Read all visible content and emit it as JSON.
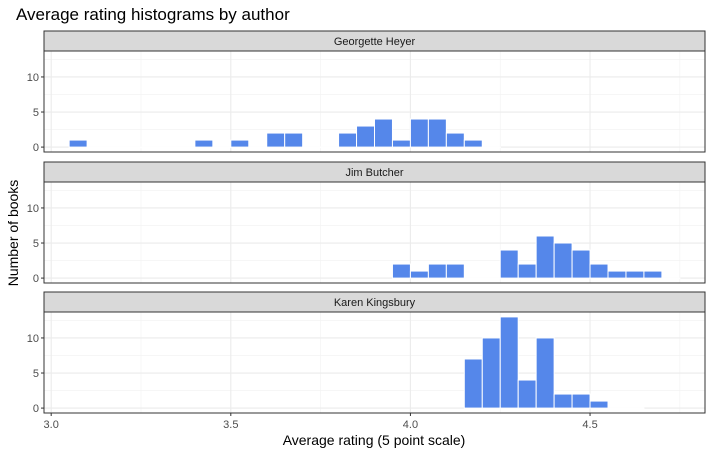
{
  "chart_data": {
    "type": "bar",
    "title": "Average rating histograms by author",
    "xlabel": "Average rating (5 point scale)",
    "ylabel": "Number of books",
    "xlim": [
      2.98,
      4.82
    ],
    "ylim": [
      -0.7,
      13.7
    ],
    "x_ticks": [
      3.0,
      3.5,
      4.0,
      4.5
    ],
    "x_tick_labels": [
      "3.0",
      "3.5",
      "4.0",
      "4.5"
    ],
    "y_ticks": [
      0,
      5,
      10
    ],
    "y_tick_labels": [
      "0",
      "5",
      "10"
    ],
    "bin_width": 0.05,
    "grid": true,
    "bar_color": "#5587ea",
    "bar_edge_color": "#ffffff",
    "strip_fill": "#d9d9d9",
    "facets": [
      {
        "name": "Georgette Heyer",
        "bin_starts": [
          3.05,
          3.1,
          3.15,
          3.2,
          3.25,
          3.3,
          3.35,
          3.4,
          3.45,
          3.5,
          3.55,
          3.6,
          3.65,
          3.7,
          3.75,
          3.8,
          3.85,
          3.9,
          3.95,
          4.0,
          4.05,
          4.1,
          4.15,
          4.2
        ],
        "counts": [
          1,
          0,
          0,
          0,
          0,
          0,
          0,
          1,
          0,
          1,
          0,
          2,
          2,
          0,
          0,
          2,
          3,
          4,
          1,
          4,
          4,
          2,
          1,
          0
        ]
      },
      {
        "name": "Jim Butcher",
        "bin_starts": [
          3.95,
          4.0,
          4.05,
          4.1,
          4.15,
          4.2,
          4.25,
          4.3,
          4.35,
          4.4,
          4.45,
          4.5,
          4.55,
          4.6,
          4.65,
          4.7
        ],
        "counts": [
          2,
          1,
          2,
          2,
          0,
          0,
          4,
          2,
          6,
          5,
          4,
          2,
          1,
          1,
          1,
          0
        ]
      },
      {
        "name": "Karen Kingsbury",
        "bin_starts": [
          4.15,
          4.2,
          4.25,
          4.3,
          4.35,
          4.4,
          4.45,
          4.5,
          4.55,
          4.6
        ],
        "counts": [
          7,
          10,
          13,
          4,
          10,
          2,
          2,
          1,
          0,
          0
        ]
      }
    ]
  }
}
